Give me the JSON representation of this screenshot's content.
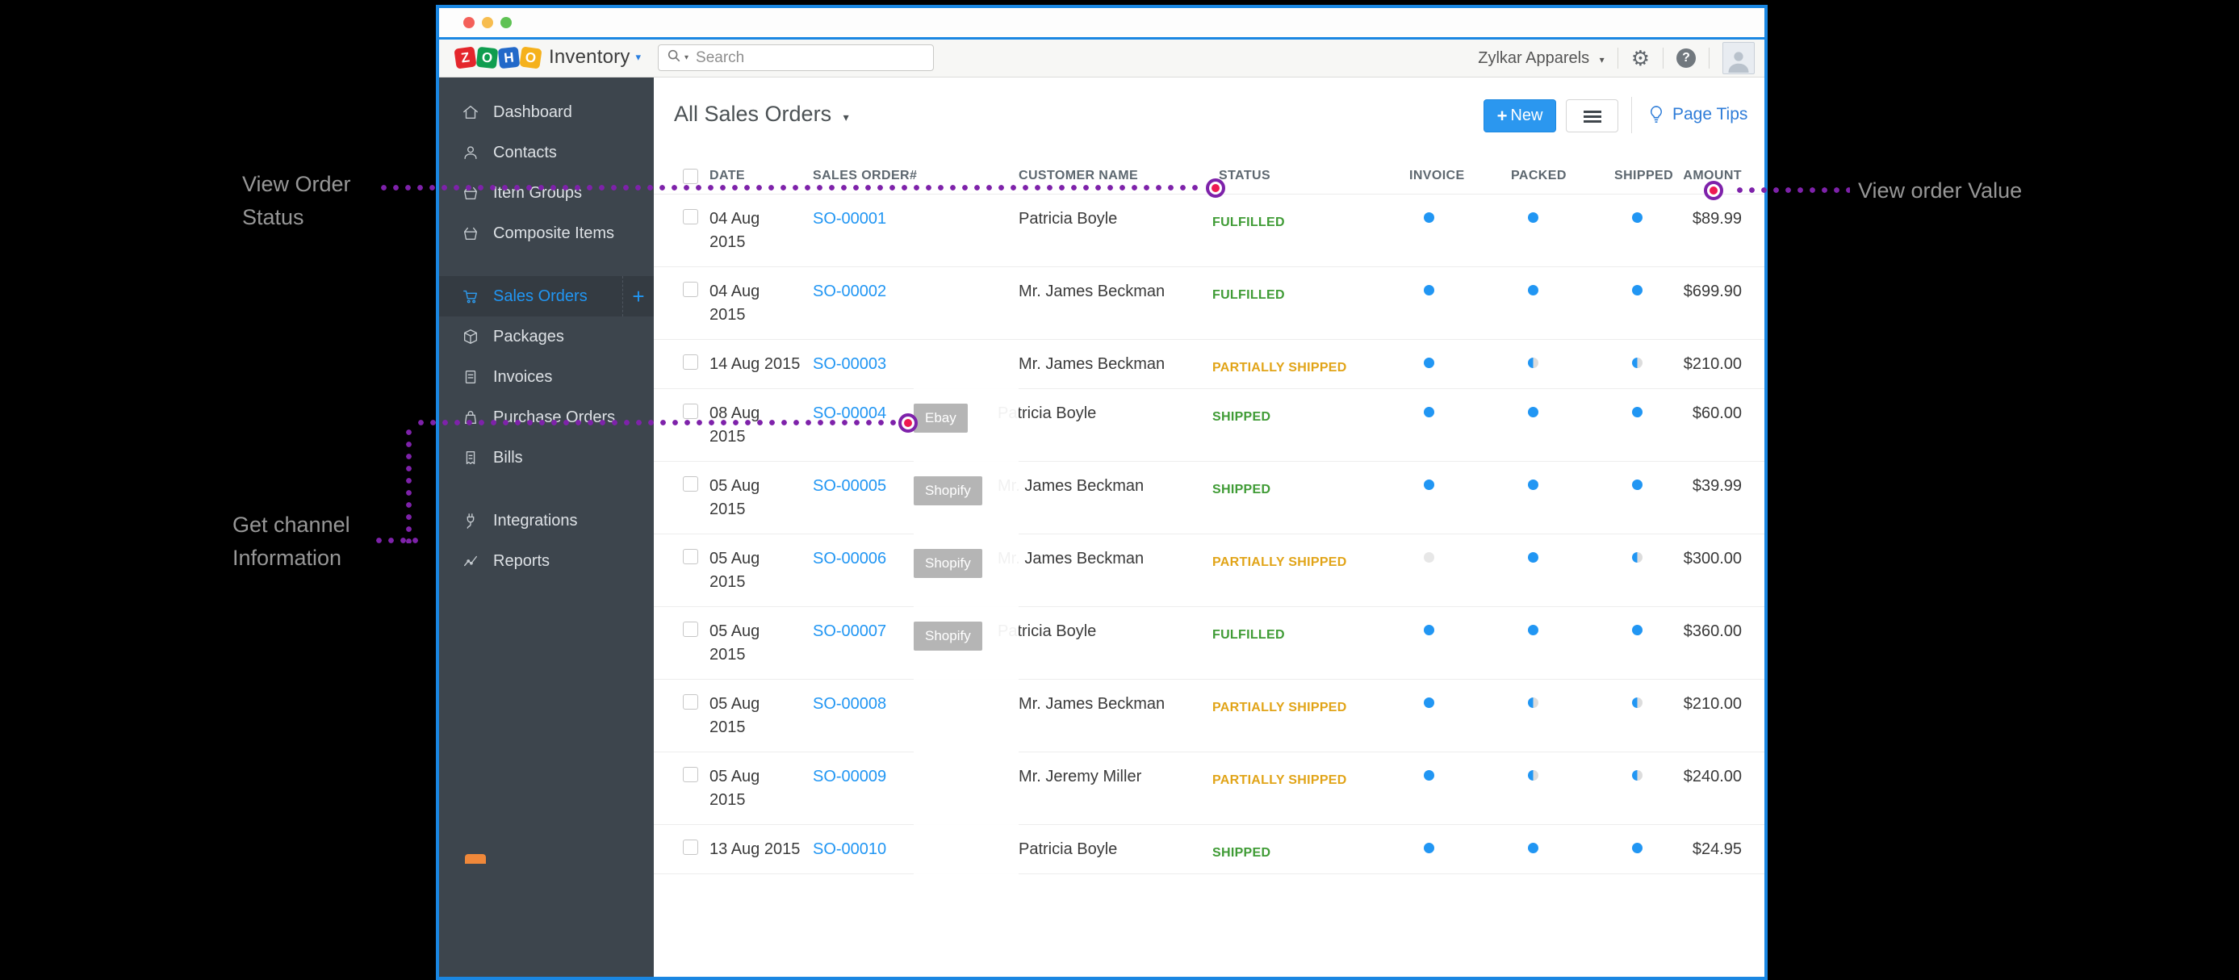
{
  "colors": {
    "accent_blue": "#2196f3",
    "window_border": "#1a87e2",
    "status_green": "#3f9b35",
    "status_gold": "#e1a418",
    "annotation_purple": "#7e22aa",
    "marker_red": "#ee1a52",
    "channel_tag_bg": "#b5b5b5",
    "sidebar_bg": "#3d454d"
  },
  "window": {
    "traffic_lights": [
      "close",
      "minimize",
      "zoom"
    ]
  },
  "topbar": {
    "brand_letters": [
      {
        "ch": "Z",
        "color": "#e4262c"
      },
      {
        "ch": "O",
        "color": "#0f9d4f"
      },
      {
        "ch": "H",
        "color": "#2269c9"
      },
      {
        "ch": "O",
        "color": "#f5b11c"
      }
    ],
    "brand_product": "Inventory",
    "search_placeholder": "Search",
    "org_name": "Zylkar Apparels"
  },
  "sidebar": {
    "items": [
      {
        "label": "Dashboard",
        "icon": "home-icon"
      },
      {
        "label": "Contacts",
        "icon": "person-icon"
      },
      {
        "label": "Item Groups",
        "icon": "basket-icon"
      },
      {
        "label": "Composite Items",
        "icon": "basket-icon"
      },
      {
        "label": "Sales Orders",
        "icon": "cart-icon",
        "active": true,
        "has_add": true
      },
      {
        "label": "Packages",
        "icon": "box-icon"
      },
      {
        "label": "Invoices",
        "icon": "document-icon"
      },
      {
        "label": "Purchase Orders",
        "icon": "bag-icon"
      },
      {
        "label": "Bills",
        "icon": "receipt-icon"
      },
      {
        "label": "Integrations",
        "icon": "plug-icon",
        "gap_before": true
      },
      {
        "label": "Reports",
        "icon": "chart-icon"
      }
    ]
  },
  "content_header": {
    "title": "All Sales Orders",
    "new_button_label": "New",
    "page_tips_label": "Page Tips"
  },
  "table": {
    "columns": [
      {
        "key": "date",
        "label": "DATE"
      },
      {
        "key": "order",
        "label": "SALES ORDER#"
      },
      {
        "key": "cust",
        "label": "CUSTOMER NAME"
      },
      {
        "key": "status",
        "label": "STATUS"
      },
      {
        "key": "inv",
        "label": "INVOICE"
      },
      {
        "key": "pack",
        "label": "PACKED"
      },
      {
        "key": "ship",
        "label": "SHIPPED"
      },
      {
        "key": "amount",
        "label": "AMOUNT"
      }
    ],
    "rows": [
      {
        "date": "04 Aug 2015",
        "wrap": true,
        "order": "SO-00001",
        "customer": "Patricia Boyle",
        "channel": null,
        "status": "FULFILLED",
        "status_color": "green",
        "invoice": "full",
        "packed": "full",
        "shipped": "full",
        "amount": "$89.99"
      },
      {
        "date": "04 Aug 2015",
        "wrap": true,
        "order": "SO-00002",
        "customer": "Mr. James Beckman",
        "channel": null,
        "status": "FULFILLED",
        "status_color": "green",
        "invoice": "full",
        "packed": "full",
        "shipped": "full",
        "amount": "$699.90"
      },
      {
        "date": "14 Aug 2015",
        "wrap": false,
        "order": "SO-00003",
        "customer": "Mr. James Beckman",
        "channel": null,
        "status": "PARTIALLY SHIPPED",
        "status_color": "gold",
        "invoice": "full",
        "packed": "half",
        "shipped": "half",
        "amount": "$210.00"
      },
      {
        "date": "08 Aug 2015",
        "wrap": true,
        "order": "SO-00004",
        "customer": "Patricia Boyle",
        "channel": "Ebay",
        "occluded": true,
        "status": "SHIPPED",
        "status_color": "green",
        "invoice": "full",
        "packed": "full",
        "shipped": "full",
        "amount": "$60.00"
      },
      {
        "date": "05 Aug 2015",
        "wrap": true,
        "order": "SO-00005",
        "customer": "Mr. James Beckman",
        "channel": "Shopify",
        "occluded": true,
        "status": "SHIPPED",
        "status_color": "green",
        "invoice": "full",
        "packed": "full",
        "shipped": "full",
        "amount": "$39.99"
      },
      {
        "date": "05 Aug 2015",
        "wrap": true,
        "order": "SO-00006",
        "customer": "Mr. James Beckman",
        "channel": "Shopify",
        "occluded": true,
        "status": "PARTIALLY SHIPPED",
        "status_color": "gold",
        "invoice": "none",
        "packed": "full",
        "shipped": "half",
        "amount": "$300.00"
      },
      {
        "date": "05 Aug 2015",
        "wrap": true,
        "order": "SO-00007",
        "customer": "Patricia Boyle",
        "channel": "Shopify",
        "occluded": true,
        "status": "FULFILLED",
        "status_color": "green",
        "invoice": "full",
        "packed": "full",
        "shipped": "full",
        "amount": "$360.00"
      },
      {
        "date": "05 Aug 2015",
        "wrap": true,
        "order": "SO-00008",
        "customer": "Mr. James Beckman",
        "channel": null,
        "status": "PARTIALLY SHIPPED",
        "status_color": "gold",
        "invoice": "full",
        "packed": "half",
        "shipped": "half",
        "amount": "$210.00"
      },
      {
        "date": "05 Aug 2015",
        "wrap": true,
        "order": "SO-00009",
        "customer": "Mr. Jeremy Miller",
        "channel": null,
        "status": "PARTIALLY SHIPPED",
        "status_color": "gold",
        "invoice": "full",
        "packed": "half",
        "shipped": "half",
        "amount": "$240.00"
      },
      {
        "date": "13 Aug 2015",
        "wrap": false,
        "order": "SO-00010",
        "customer": "Patricia Boyle",
        "channel": null,
        "status": "SHIPPED",
        "status_color": "green",
        "invoice": "full",
        "packed": "full",
        "shipped": "full",
        "amount": "$24.95"
      }
    ]
  },
  "annotations": {
    "order_status": {
      "text": "View Order Status"
    },
    "order_value": {
      "text": "View order Value"
    },
    "channel_info": {
      "text": "Get channel Information"
    }
  }
}
